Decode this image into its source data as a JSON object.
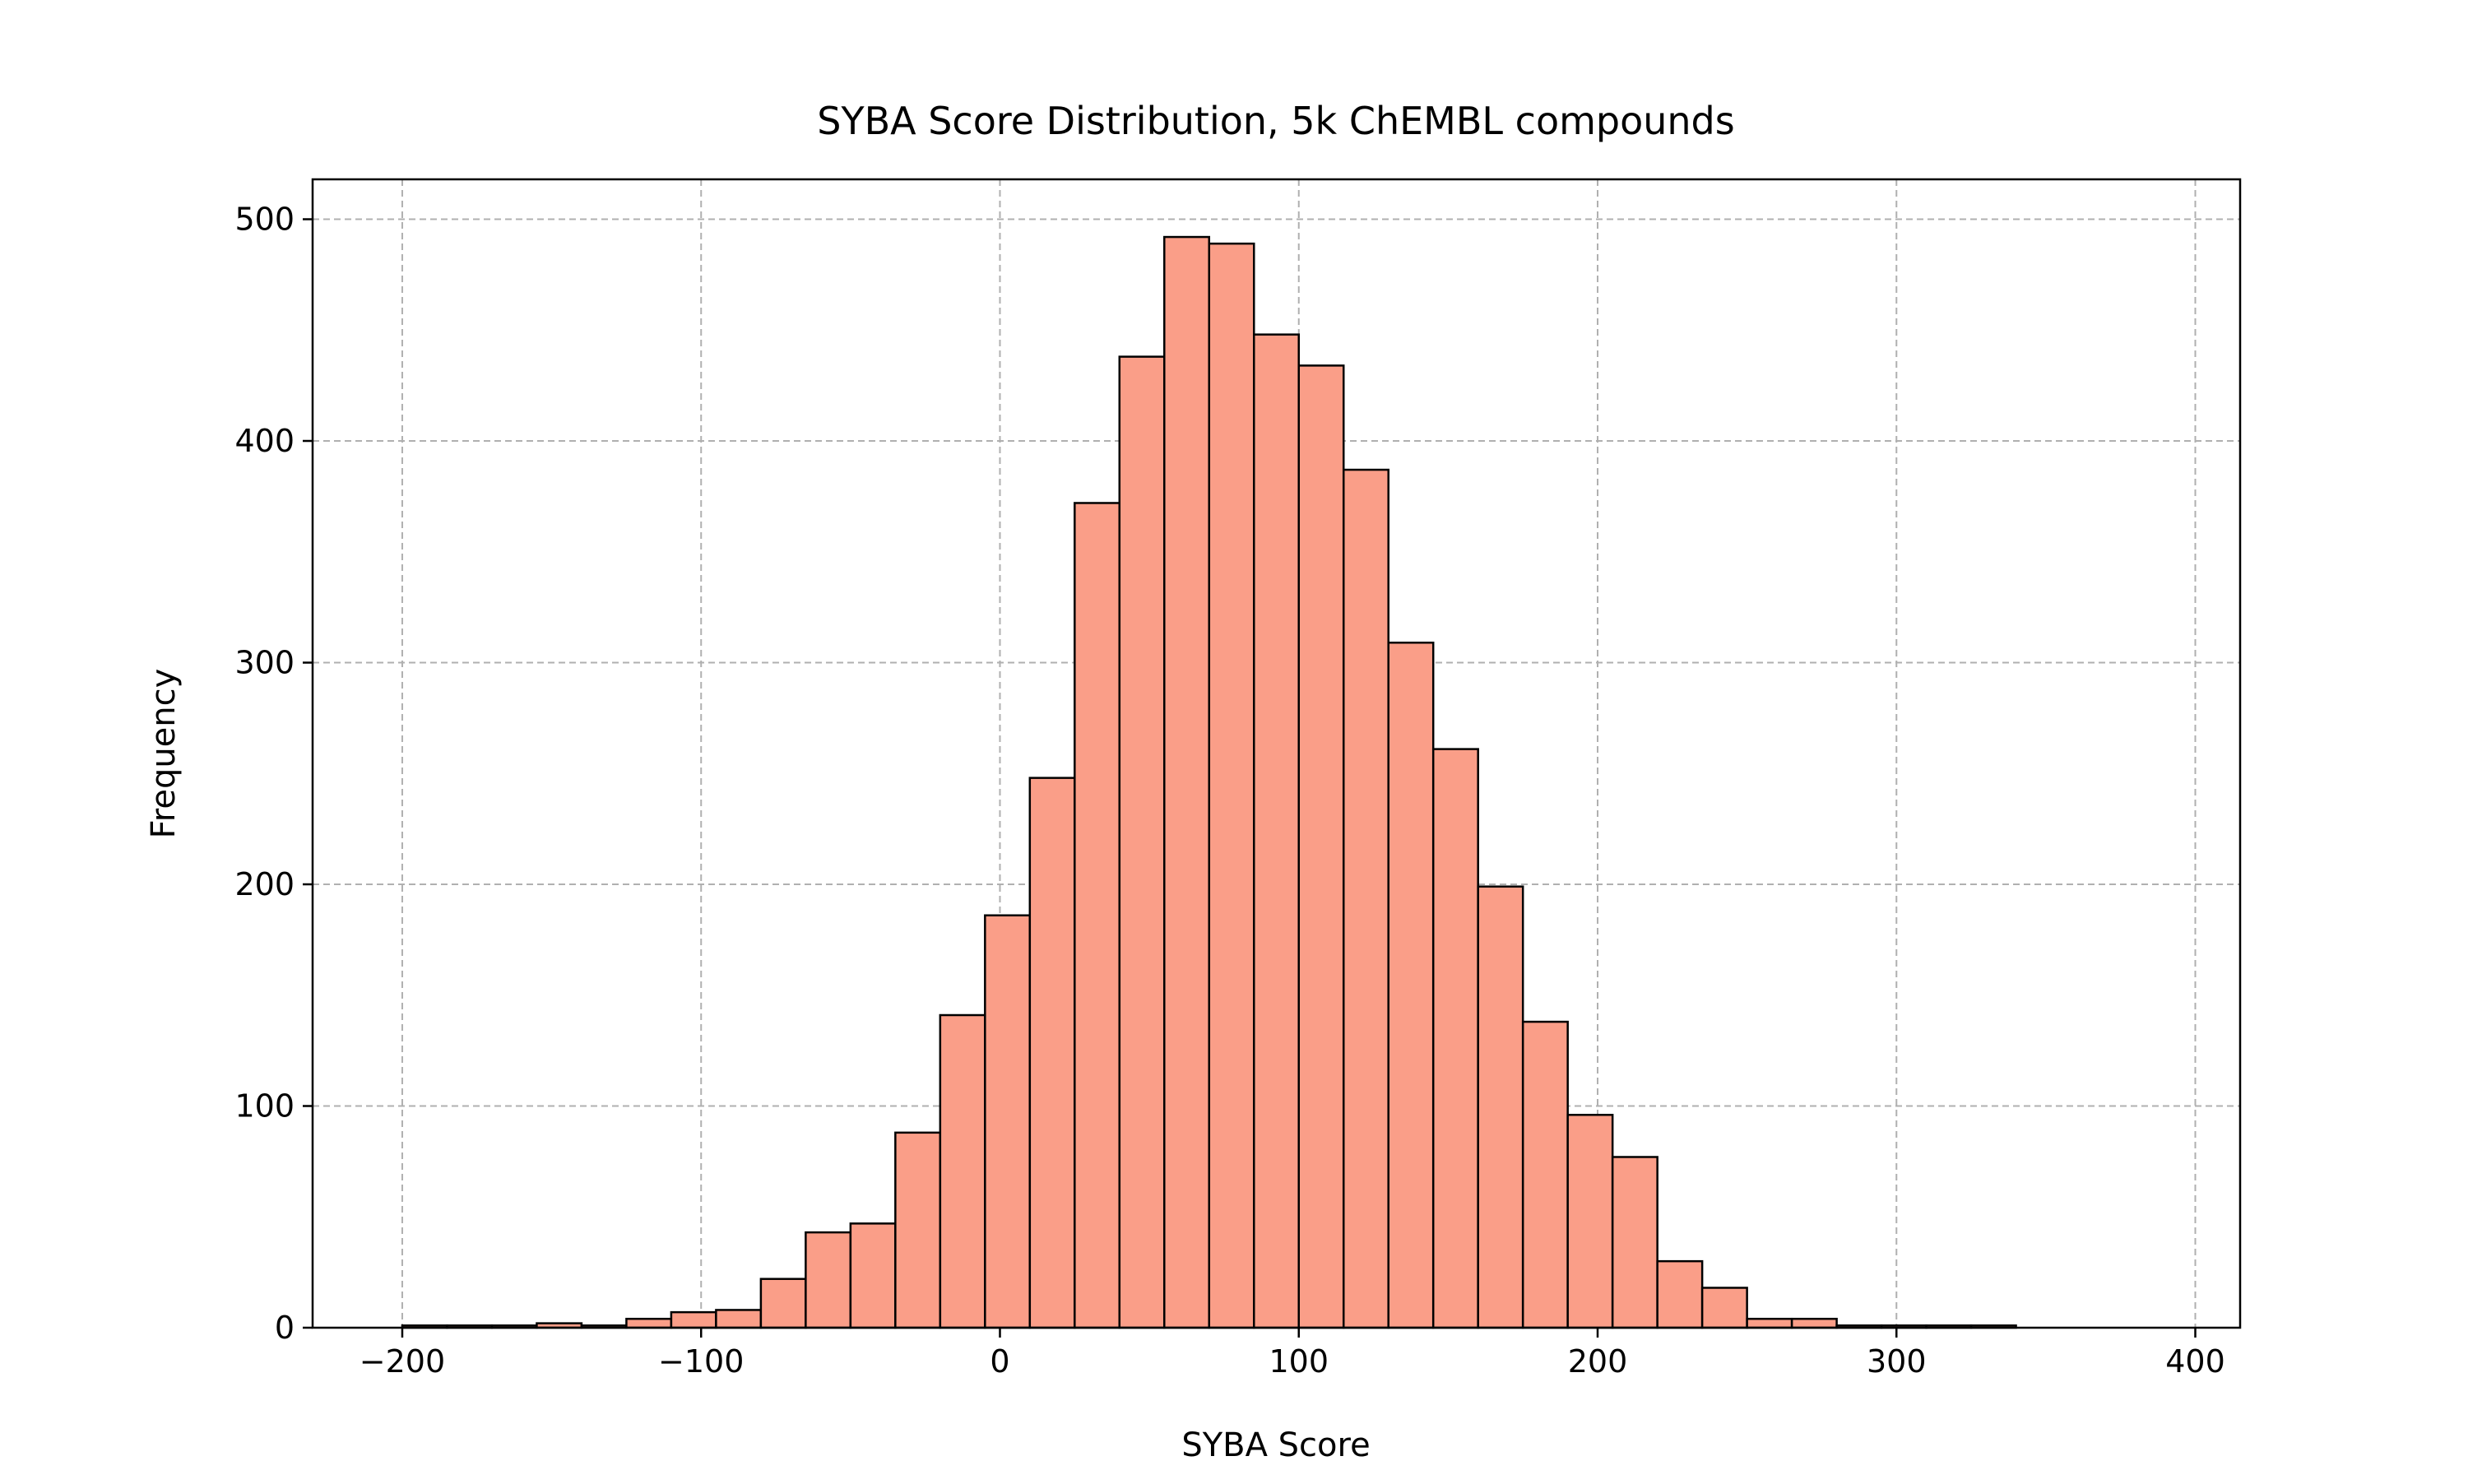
{
  "chart_data": {
    "type": "bar",
    "subtype": "histogram",
    "title": "SYBA Score Distribution, 5k ChEMBL compounds",
    "xlabel": "SYBA Score",
    "ylabel": "Frequency",
    "xlim": [
      -230,
      415
    ],
    "ylim": [
      0,
      518
    ],
    "xticks": [
      -200,
      -100,
      0,
      100,
      200,
      300,
      400
    ],
    "xtick_labels": [
      "−200",
      "−100",
      "0",
      "100",
      "200",
      "300",
      "400"
    ],
    "yticks": [
      0,
      100,
      200,
      300,
      400,
      500
    ],
    "ytick_labels": [
      "0",
      "100",
      "200",
      "300",
      "400",
      "500"
    ],
    "grid": true,
    "bin_edges": [
      -200,
      -185,
      -170,
      -155,
      -140,
      -125,
      -110,
      -95,
      -80,
      -65,
      -50,
      -35,
      -20,
      -5,
      10,
      25,
      40,
      55,
      70,
      85,
      100,
      115,
      130,
      145,
      160,
      175,
      190,
      205,
      220,
      235,
      250,
      265,
      280,
      295,
      310,
      325,
      340,
      355,
      370,
      385
    ],
    "values": [
      1,
      1,
      1,
      2,
      1,
      4,
      7,
      8,
      22,
      43,
      47,
      88,
      141,
      186,
      248,
      372,
      438,
      492,
      489,
      448,
      434,
      387,
      309,
      261,
      199,
      138,
      96,
      77,
      30,
      18,
      4,
      4,
      1,
      1,
      1,
      1,
      0,
      0,
      0
    ],
    "colors": {
      "bar_fill": "#fa9e88",
      "bar_edge": "#000000",
      "grid": "#b0b0b0",
      "axis": "#000000"
    }
  }
}
